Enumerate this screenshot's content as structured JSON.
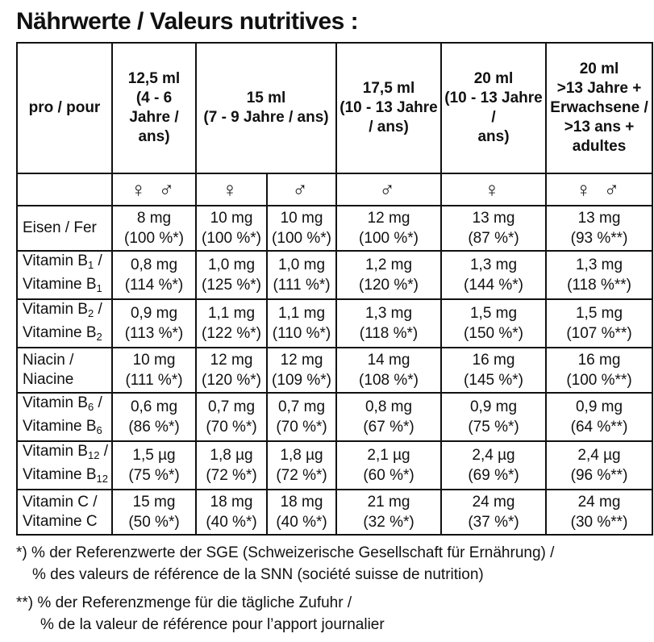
{
  "title": "Nährwerte / Valeurs nutritives :",
  "table": {
    "corner_label": "pro / pour",
    "columns": [
      {
        "lines": [
          "12,5 ml",
          "(4 - 6 Jahre /",
          "ans)"
        ],
        "span": 1
      },
      {
        "lines": [
          "15 ml",
          "(7 - 9 Jahre / ans)"
        ],
        "span": 2
      },
      {
        "lines": [
          "17,5 ml",
          "(10 - 13 Jahre",
          "/ ans)"
        ],
        "span": 1
      },
      {
        "lines": [
          "20 ml",
          "(10 - 13 Jahre /",
          "ans)"
        ],
        "span": 1
      },
      {
        "lines": [
          "20 ml",
          ">13 Jahre +",
          "Erwachsene /",
          ">13 ans +",
          "adultes"
        ],
        "span": 1
      }
    ],
    "genders": [
      "♀ ♂",
      "♀",
      "♂",
      "♂",
      "♀",
      "♀ ♂"
    ],
    "rows": [
      {
        "label": [
          "Eisen / Fer"
        ],
        "values": [
          [
            "8 mg",
            "(100 %*)"
          ],
          [
            "10 mg",
            "(100 %*)"
          ],
          [
            "10 mg",
            "(100 %*)"
          ],
          [
            "12 mg",
            "(100 %*)"
          ],
          [
            "13 mg",
            "(87 %*)"
          ],
          [
            "13 mg",
            "(93 %**)"
          ]
        ]
      },
      {
        "label": [
          "Vitamin B",
          "1",
          " /",
          "Vitamine B",
          "1",
          ""
        ],
        "values": [
          [
            "0,8 mg",
            "(114 %*)"
          ],
          [
            "1,0 mg",
            "(125 %*)"
          ],
          [
            "1,0 mg",
            "(111 %*)"
          ],
          [
            "1,2 mg",
            "(120 %*)"
          ],
          [
            "1,3 mg",
            "(144 %*)"
          ],
          [
            "1,3 mg",
            "(118 %**)"
          ]
        ]
      },
      {
        "label": [
          "Vitamin B",
          "2",
          " /",
          "Vitamine B",
          "2",
          ""
        ],
        "values": [
          [
            "0,9 mg",
            "(113 %*)"
          ],
          [
            "1,1 mg",
            "(122 %*)"
          ],
          [
            "1,1 mg",
            "(110 %*)"
          ],
          [
            "1,3 mg",
            "(118 %*)"
          ],
          [
            "1,5 mg",
            "(150 %*)"
          ],
          [
            "1,5 mg",
            "(107 %**)"
          ]
        ]
      },
      {
        "label": [
          "Niacin /",
          "Niacine"
        ],
        "values": [
          [
            "10 mg",
            "(111 %*)"
          ],
          [
            "12 mg",
            "(120 %*)"
          ],
          [
            "12 mg",
            "(109 %*)"
          ],
          [
            "14 mg",
            "(108 %*)"
          ],
          [
            "16 mg",
            "(145 %*)"
          ],
          [
            "16 mg",
            "(100 %**)"
          ]
        ]
      },
      {
        "label": [
          "Vitamin B",
          "6",
          " /",
          "Vitamine B",
          "6",
          ""
        ],
        "values": [
          [
            "0,6 mg",
            "(86 %*)"
          ],
          [
            "0,7 mg",
            "(70 %*)"
          ],
          [
            "0,7 mg",
            "(70 %*)"
          ],
          [
            "0,8 mg",
            "(67 %*)"
          ],
          [
            "0,9 mg",
            "(75 %*)"
          ],
          [
            "0,9 mg",
            "(64 %**)"
          ]
        ]
      },
      {
        "label": [
          "Vitamin B",
          "12",
          " /",
          "Vitamine B",
          "12",
          ""
        ],
        "values": [
          [
            "1,5 µg",
            "(75 %*)"
          ],
          [
            "1,8 µg",
            "(72 %*)"
          ],
          [
            "1,8 µg",
            "(72 %*)"
          ],
          [
            "2,1 µg",
            "(60 %*)"
          ],
          [
            "2,4 µg",
            "(69  %*)"
          ],
          [
            "2,4 µg",
            "(96 %**)"
          ]
        ]
      },
      {
        "label": [
          "Vitamin C /",
          "Vitamine C"
        ],
        "values": [
          [
            "15 mg",
            "(50 %*)"
          ],
          [
            "18 mg",
            "(40 %*)"
          ],
          [
            "18 mg",
            "(40 %*)"
          ],
          [
            "21 mg",
            "(32 %*)"
          ],
          [
            "24 mg",
            "(37 %*)"
          ],
          [
            "24 mg",
            "(30 %**)"
          ]
        ]
      }
    ]
  },
  "footnotes": [
    {
      "marker": "*)",
      "line1": "% der Referenzwerte der SGE (Schweizerische Gesellschaft für Ernährung) /",
      "line2": "% des valeurs de référence de la SNN (société suisse de nutrition)"
    },
    {
      "marker": "**)",
      "line1": "% der Referenzmenge für die tägliche Zufuhr /",
      "line2": "% de la valeur de référence pour l’apport journalier"
    }
  ]
}
